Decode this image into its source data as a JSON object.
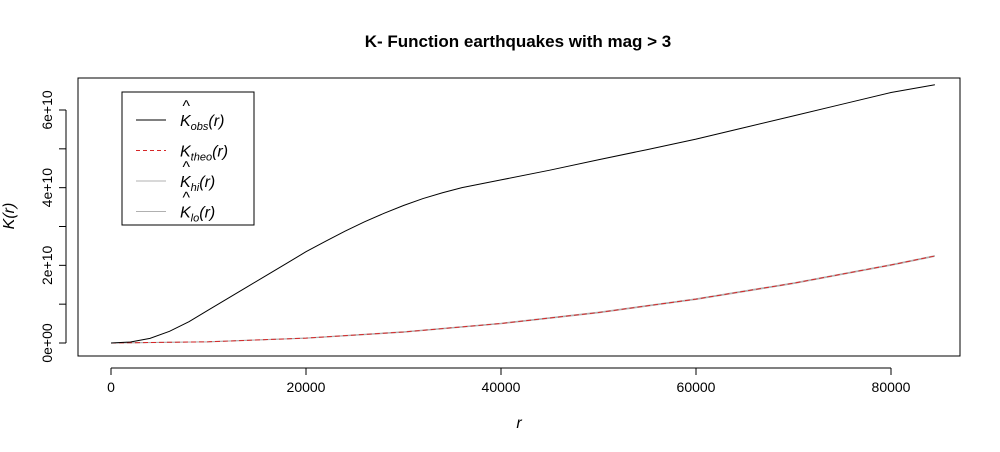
{
  "chart_data": {
    "type": "line",
    "title": "K- Function earthquakes with mag > 3",
    "xlabel": "r",
    "ylabel": "K(r)",
    "xlim": [
      0,
      87000
    ],
    "ylim": [
      0,
      65000000000.0
    ],
    "x_ticks": [
      0,
      20000,
      40000,
      60000,
      80000
    ],
    "x_tick_labels": [
      "0",
      "20000",
      "40000",
      "60000",
      "80000"
    ],
    "y_ticks": [
      0,
      20000000000.0,
      40000000000.0,
      60000000000.0
    ],
    "y_tick_labels": [
      "0e+00",
      "2e+10",
      "4e+10",
      "6e+10"
    ],
    "legend_position": "top-left",
    "grid": false,
    "series": [
      {
        "name": "K_obs(r)",
        "legend": {
          "hat": "^",
          "base": "K",
          "sub": "obs",
          "arg": "(r)"
        },
        "color": "#000000",
        "dash": "solid",
        "x": [
          0,
          2000,
          4000,
          6000,
          8000,
          10000,
          12000,
          14000,
          16000,
          18000,
          20000,
          22000,
          24000,
          26000,
          28000,
          30000,
          32000,
          34000,
          36000,
          38000,
          40000,
          45000,
          50000,
          55000,
          60000,
          65000,
          70000,
          75000,
          80000,
          84500
        ],
        "y": [
          0,
          250000000.0,
          1200000000.0,
          3000000000.0,
          5500000000.0,
          8500000000.0,
          11500000000.0,
          14500000000.0,
          17500000000.0,
          20500000000.0,
          23500000000.0,
          26200000000.0,
          28800000000.0,
          31200000000.0,
          33400000000.0,
          35400000000.0,
          37200000000.0,
          38700000000.0,
          40000000000.0,
          41000000000.0,
          42000000000.0,
          44500000000.0,
          47200000000.0,
          49800000000.0,
          52500000000.0,
          55500000000.0,
          58500000000.0,
          61500000000.0,
          64500000000.0,
          66500000000.0
        ]
      },
      {
        "name": "K_theo(r)",
        "legend": {
          "hat": "",
          "base": "K",
          "sub": "theo",
          "arg": "(r)"
        },
        "color": "#d62728",
        "dash": "dashed",
        "x": [
          0,
          10000,
          20000,
          30000,
          40000,
          50000,
          60000,
          70000,
          80000,
          84500
        ],
        "y": [
          0,
          310000000.0,
          1260000000.0,
          2830000000.0,
          5030000000.0,
          7850000000.0,
          11300000000.0,
          15400000000.0,
          20100000000.0,
          22400000000.0
        ]
      },
      {
        "name": "K_hi(r)",
        "legend": {
          "hat": "^",
          "base": "K",
          "sub": "hi",
          "arg": "(r)"
        },
        "color": "#b0b0b0",
        "dash": "solid",
        "x": [
          0,
          10000,
          20000,
          30000,
          40000,
          50000,
          60000,
          70000,
          80000,
          84500
        ],
        "y": [
          0,
          330000000.0,
          1300000000.0,
          2900000000.0,
          5100000000.0,
          7950000000.0,
          11400000000.0,
          15500000000.0,
          20200000000.0,
          22500000000.0
        ]
      },
      {
        "name": "K_lo(r)",
        "legend": {
          "hat": "^",
          "base": "K",
          "sub": "lo",
          "arg": "(r)"
        },
        "color": "#b0b0b0",
        "dash": "solid",
        "x": [
          0,
          10000,
          20000,
          30000,
          40000,
          50000,
          60000,
          70000,
          80000,
          84500
        ],
        "y": [
          0,
          290000000.0,
          1220000000.0,
          2760000000.0,
          4960000000.0,
          7750000000.0,
          11200000000.0,
          15300000000.0,
          20000000000.0,
          22300000000.0
        ]
      }
    ]
  }
}
